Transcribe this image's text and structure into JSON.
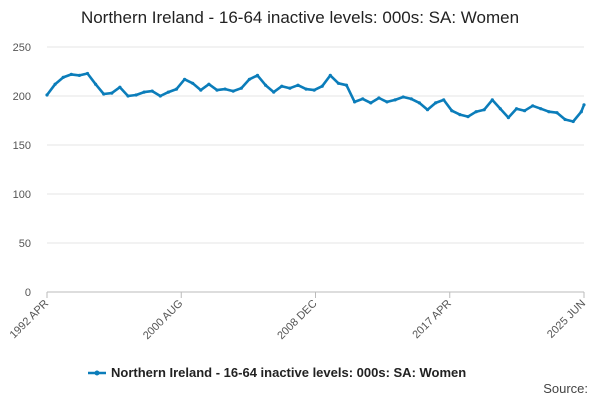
{
  "chart_data": {
    "type": "line",
    "title": "Northern Ireland - 16-64 inactive levels: 000s: SA: Women",
    "xlabel": "",
    "ylabel": "",
    "ylim": [
      0,
      250
    ],
    "yticks": [
      0,
      50,
      100,
      150,
      200,
      250
    ],
    "x_tick_labels": [
      "1992 APR",
      "2000 AUG",
      "2008 DEC",
      "2017 APR",
      "2025 JUN"
    ],
    "x_range_months": [
      "1992-04",
      "2025-06"
    ],
    "grid": "horizontal",
    "legend_position": "bottom-center",
    "series": [
      {
        "name": "Northern Ireland - 16-64 inactive levels: 000s: SA: Women",
        "color": "#0b7dba",
        "x": [
          "1992-04",
          "1992-10",
          "1993-04",
          "1993-10",
          "1994-04",
          "1994-10",
          "1995-04",
          "1995-10",
          "1996-04",
          "1996-10",
          "1997-04",
          "1997-10",
          "1998-04",
          "1998-10",
          "1999-04",
          "1999-10",
          "2000-04",
          "2000-10",
          "2001-04",
          "2001-10",
          "2002-04",
          "2002-10",
          "2003-04",
          "2003-10",
          "2004-04",
          "2004-10",
          "2005-04",
          "2005-10",
          "2006-04",
          "2006-10",
          "2007-04",
          "2007-10",
          "2008-04",
          "2008-10",
          "2009-04",
          "2009-10",
          "2010-04",
          "2010-10",
          "2011-04",
          "2011-10",
          "2012-04",
          "2012-10",
          "2013-04",
          "2013-10",
          "2014-04",
          "2014-10",
          "2015-04",
          "2015-10",
          "2016-04",
          "2016-10",
          "2017-04",
          "2017-10",
          "2018-04",
          "2018-10",
          "2019-04",
          "2019-10",
          "2020-04",
          "2020-10",
          "2021-04",
          "2021-10",
          "2022-04",
          "2022-10",
          "2023-04",
          "2023-10",
          "2024-04",
          "2024-10",
          "2025-04",
          "2025-06"
        ],
        "values": [
          201,
          212,
          219,
          222,
          221,
          223,
          212,
          202,
          203,
          209,
          200,
          201,
          204,
          205,
          200,
          204,
          207,
          217,
          213,
          206,
          212,
          206,
          207,
          205,
          208,
          217,
          221,
          211,
          204,
          210,
          208,
          211,
          207,
          206,
          210,
          221,
          213,
          211,
          194,
          197,
          193,
          198,
          194,
          196,
          199,
          197,
          193,
          186,
          193,
          196,
          185,
          181,
          179,
          184,
          186,
          196,
          187,
          178,
          187,
          185,
          190,
          187,
          184,
          183,
          176,
          174,
          184,
          191
        ]
      }
    ]
  },
  "legend": {
    "label": "Northern Ireland - 16-64 inactive levels: 000s: SA: Women"
  },
  "source": {
    "label": "Source:"
  }
}
